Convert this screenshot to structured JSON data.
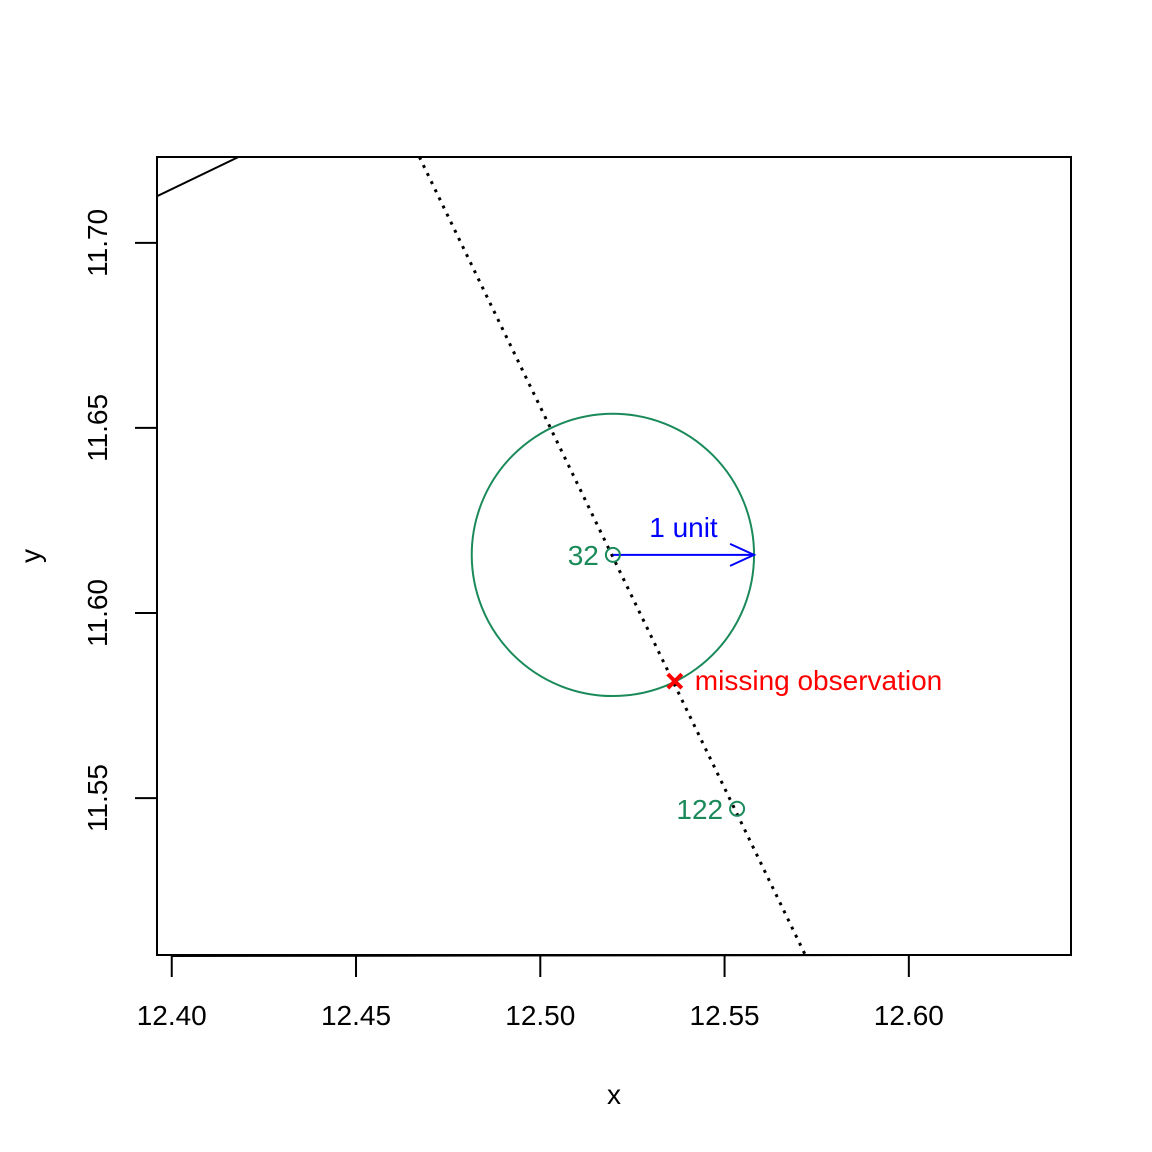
{
  "chart_data": {
    "type": "scatter",
    "title": "",
    "xlabel": "x",
    "ylabel": "y",
    "xlim": [
      12.396,
      12.644
    ],
    "ylim": [
      11.5076,
      11.7232
    ],
    "grid": false,
    "xticks": [
      12.4,
      12.45,
      12.5,
      12.55,
      12.6
    ],
    "xtick_labels": [
      "12.40",
      "12.45",
      "12.50",
      "12.55",
      "12.60"
    ],
    "yticks": [
      11.55,
      11.6,
      11.65,
      11.7
    ],
    "ytick_labels": [
      "11.55",
      "11.60",
      "11.65",
      "11.70"
    ],
    "points": [
      {
        "label": "32",
        "x": 12.5197,
        "y": 11.6157,
        "color": "#1b8a5a"
      },
      {
        "label": "122",
        "x": 12.5534,
        "y": 11.5471,
        "color": "#1b8a5a"
      }
    ],
    "missing": {
      "label": "missing observation",
      "x": 12.5365,
      "y": 11.5816,
      "color": "#ff0000"
    },
    "circle": {
      "cx": 12.5197,
      "cy": 11.6157,
      "r": 0.0383,
      "color": "#1b8a5a"
    },
    "arrow": {
      "label": "1 unit",
      "x0": 12.5197,
      "y0": 11.6157,
      "x1": 12.558,
      "y1": 11.6157,
      "color": "#0000ff"
    },
    "dotted_line": {
      "x0": 12.4672,
      "y0": 11.7232,
      "x1": 12.5719,
      "y1": 11.5076,
      "color": "#000000"
    },
    "solid_line": {
      "x0": 12.396,
      "y0": 11.7126,
      "x1": 12.4181,
      "y1": 11.7232,
      "color": "#000000"
    }
  }
}
